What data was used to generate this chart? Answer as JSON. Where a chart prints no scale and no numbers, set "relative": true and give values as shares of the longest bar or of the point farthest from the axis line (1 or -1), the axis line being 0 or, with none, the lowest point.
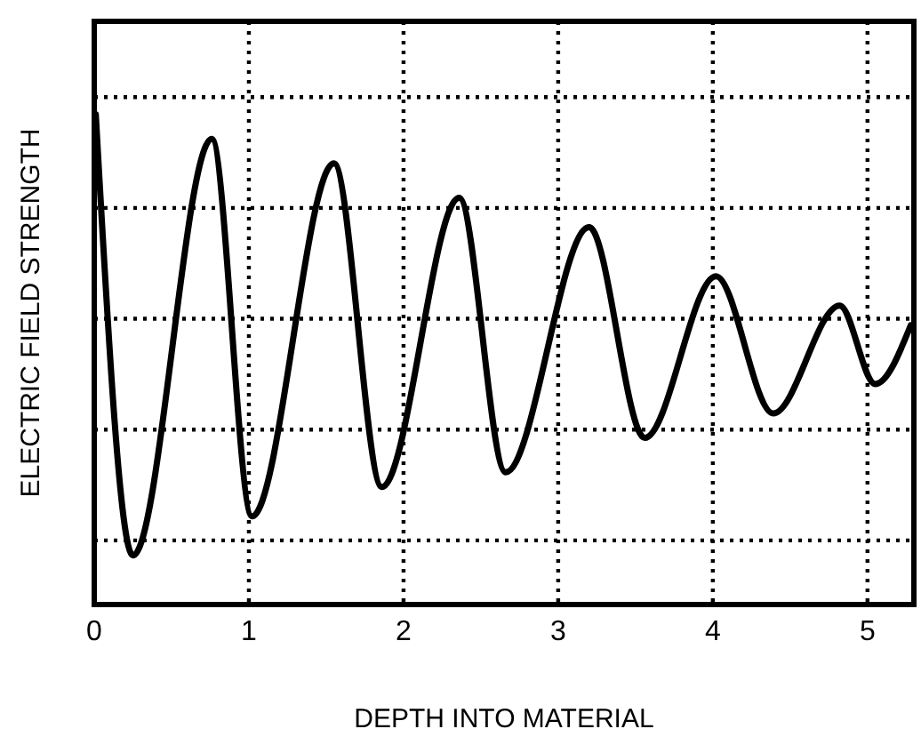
{
  "chart_data": {
    "type": "line",
    "relative": true,
    "xlabel": "DEPTH INTO MATERIAL",
    "ylabel": "ELECTRIC FIELD STRENGTH",
    "xlim": [
      0,
      5.3
    ],
    "xticks": [
      0,
      1,
      2,
      3,
      4,
      5
    ],
    "grid": true,
    "line_style": "solid",
    "marker": "none",
    "series": [
      {
        "color": "#000000",
        "x": [
          0.01,
          0.25,
          0.76,
          1.02,
          1.55,
          1.86,
          2.36,
          2.66,
          3.2,
          3.56,
          4.02,
          4.39,
          4.82,
          5.05,
          5.28
        ],
        "values": [
          1.0,
          0.1,
          0.95,
          0.18,
          0.9,
          0.24,
          0.83,
          0.27,
          0.77,
          0.34,
          0.67,
          0.39,
          0.61,
          0.45,
          0.57
        ]
      }
    ]
  }
}
